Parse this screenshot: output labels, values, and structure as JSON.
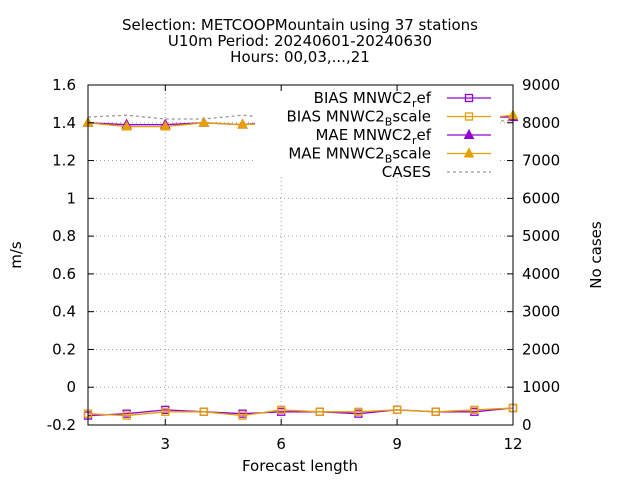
{
  "chart_data": {
    "type": "line",
    "title_lines": [
      "Selection: METCOOPMountain using    37 stations",
      "U10m   Period: 20240601-20240630",
      "Hours: 00,03,...,21"
    ],
    "xlabel": "Forecast length",
    "ylabel": "m/s",
    "y2label": "No cases",
    "xlim": [
      1,
      12
    ],
    "ylim": [
      -0.2,
      1.6
    ],
    "y2lim": [
      0,
      9000
    ],
    "xticks": [
      3,
      6,
      9,
      12
    ],
    "yticks": [
      -0.2,
      0,
      0.2,
      0.4,
      0.6,
      0.8,
      1,
      1.2,
      1.4,
      1.6
    ],
    "y2ticks": [
      0,
      1000,
      2000,
      3000,
      4000,
      5000,
      6000,
      7000,
      8000,
      9000
    ],
    "grid": true,
    "legend_position": "top-right",
    "x": [
      1,
      2,
      3,
      4,
      5,
      6,
      7,
      8,
      9,
      10,
      11,
      12
    ],
    "series": [
      {
        "name": "BIAS MNWC2_ref",
        "legend_main": "BIAS MNWC2",
        "legend_sub": "r",
        "legend_tail": "ef",
        "color": "#9400d3",
        "marker": "square",
        "axis": "y",
        "values": [
          -0.15,
          -0.14,
          -0.12,
          -0.13,
          -0.14,
          -0.13,
          -0.13,
          -0.14,
          -0.12,
          -0.13,
          -0.13,
          -0.11
        ]
      },
      {
        "name": "BIAS MNWC2_Bscale",
        "legend_main": "BIAS MNWC2",
        "legend_sub": "B",
        "legend_tail": "scale",
        "color": "#e69f00",
        "marker": "square",
        "axis": "y",
        "values": [
          -0.14,
          -0.15,
          -0.13,
          -0.13,
          -0.15,
          -0.12,
          -0.13,
          -0.13,
          -0.12,
          -0.13,
          -0.12,
          -0.11
        ]
      },
      {
        "name": "MAE MNWC2_ref",
        "legend_main": "MAE MNWC2",
        "legend_sub": "r",
        "legend_tail": "ef",
        "color": "#9400d3",
        "marker": "triangle",
        "axis": "y",
        "values": [
          1.4,
          1.39,
          1.39,
          1.4,
          1.39,
          1.41,
          1.42,
          1.41,
          1.42,
          1.44,
          1.43,
          1.43
        ]
      },
      {
        "name": "MAE MNWC2_Bscale",
        "legend_main": "MAE MNWC2",
        "legend_sub": "B",
        "legend_tail": "scale",
        "color": "#e69f00",
        "marker": "triangle",
        "axis": "y",
        "values": [
          1.4,
          1.38,
          1.38,
          1.4,
          1.39,
          1.4,
          1.41,
          1.41,
          1.41,
          1.43,
          1.42,
          1.44
        ]
      },
      {
        "name": "CASES",
        "legend_main": "CASES",
        "legend_sub": "",
        "legend_tail": "",
        "color": "#999999",
        "marker": "none",
        "dashed": true,
        "axis": "y2",
        "values": [
          8150,
          8200,
          8100,
          8100,
          8200,
          8100,
          8150,
          8100,
          8150,
          8100,
          8050,
          8050
        ]
      }
    ]
  }
}
